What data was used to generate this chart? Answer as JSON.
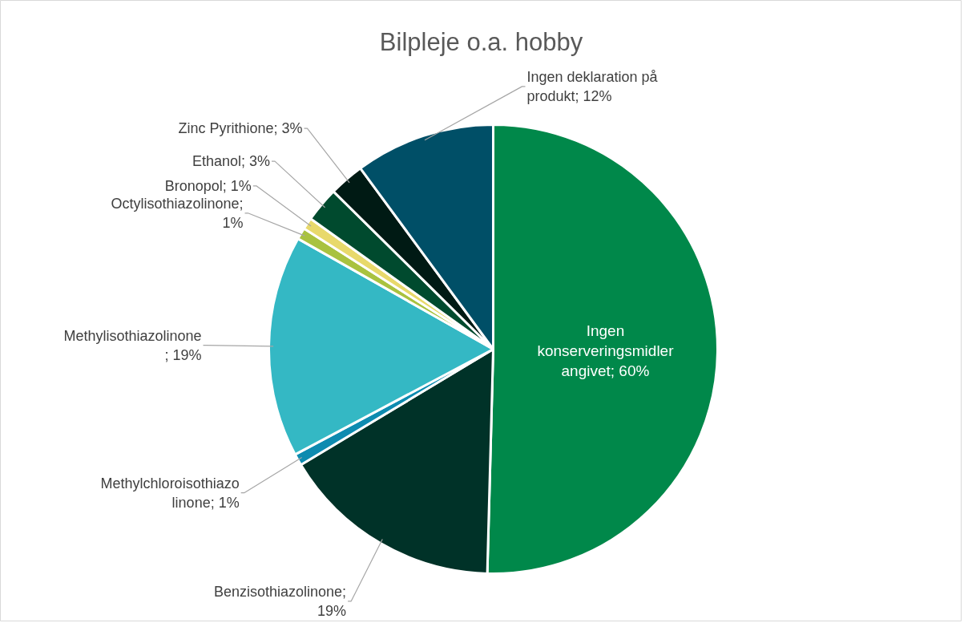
{
  "chart_data": {
    "type": "pie",
    "title": "Bilpleje o.a. hobby",
    "categories": [
      "Ingen konserveringsmidler angivet; 60%",
      "Benzisothiazolinone; 19%",
      "Methylchloroisothiazolinone; 1%",
      "Methylisothiazolinone; 19%",
      "Octylisothiazolinone; 1%",
      "Bronopol; 1%",
      "Ethanol; 3%",
      "Zinc Pyrithione; 3%",
      "Ingen deklaration på produkt; 12%"
    ],
    "values": [
      60,
      19,
      1,
      19,
      1,
      1,
      3,
      3,
      12
    ],
    "colors": [
      "#00884a",
      "#003228",
      "#0e8bb0",
      "#34b8c4",
      "#a9c23f",
      "#e8d96b",
      "#004a2e",
      "#001a14",
      "#004f67"
    ]
  }
}
